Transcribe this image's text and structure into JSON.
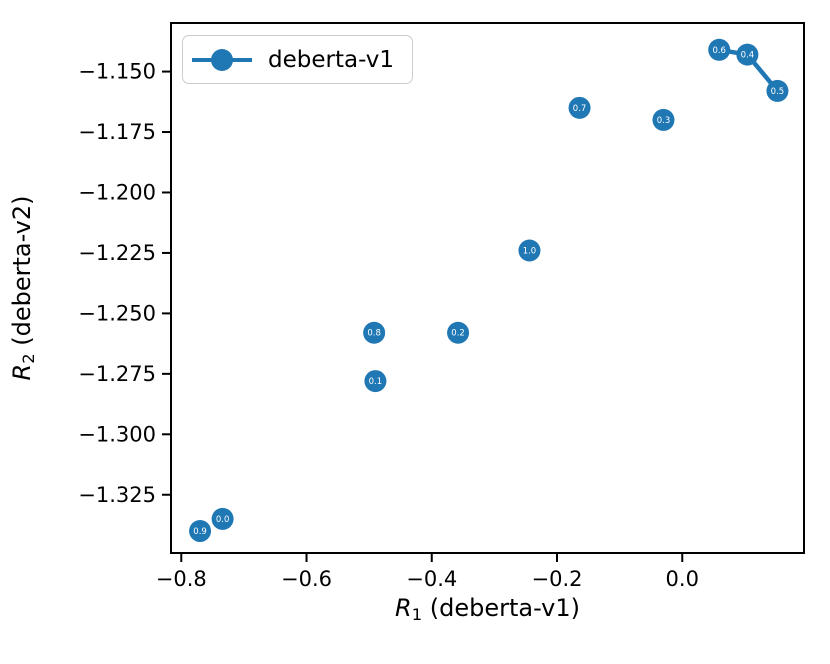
{
  "figure": {
    "background": "#ffffff"
  },
  "chart_data": {
    "type": "scatter",
    "title": "",
    "xlabel": {
      "var": "R",
      "sub": "1",
      "rest": " (deberta-v1)"
    },
    "ylabel": {
      "var": "R",
      "sub": "2",
      "rest": " (deberta-v2)"
    },
    "xlim": [
      -0.818,
      0.196
    ],
    "ylim": [
      -1.3495,
      -1.1295
    ],
    "grid": false,
    "xticks": [
      {
        "value": -0.8,
        "label": "−0.8"
      },
      {
        "value": -0.6,
        "label": "−0.6"
      },
      {
        "value": -0.4,
        "label": "−0.4"
      },
      {
        "value": -0.2,
        "label": "−0.2"
      },
      {
        "value": 0.0,
        "label": "0.0"
      }
    ],
    "yticks": [
      {
        "value": -1.15,
        "label": "−1.150"
      },
      {
        "value": -1.175,
        "label": "−1.175"
      },
      {
        "value": -1.2,
        "label": "−1.200"
      },
      {
        "value": -1.225,
        "label": "−1.225"
      },
      {
        "value": -1.25,
        "label": "−1.250"
      },
      {
        "value": -1.275,
        "label": "−1.275"
      },
      {
        "value": -1.3,
        "label": "−1.300"
      },
      {
        "value": -1.325,
        "label": "−1.325"
      }
    ],
    "legend": {
      "position": "upper left",
      "entries": [
        {
          "label": "deberta-v1",
          "color": "#1f77b4",
          "marker": "circle-line"
        }
      ]
    },
    "series": [
      {
        "name": "deberta-v1",
        "marker_color": "#1f77b4",
        "marker_label_color": "#ffffff",
        "marker_radius_px": 11,
        "points": [
          {
            "label": "0.9",
            "x": -0.77,
            "y": -1.34
          },
          {
            "label": "0.0",
            "x": -0.734,
            "y": -1.335
          },
          {
            "label": "0.8",
            "x": -0.492,
            "y": -1.258
          },
          {
            "label": "0.1",
            "x": -0.49,
            "y": -1.278
          },
          {
            "label": "0.2",
            "x": -0.358,
            "y": -1.258
          },
          {
            "label": "1.0",
            "x": -0.244,
            "y": -1.224
          },
          {
            "label": "0.7",
            "x": -0.164,
            "y": -1.165
          },
          {
            "label": "0.3",
            "x": -0.03,
            "y": -1.17
          },
          {
            "label": "0.6",
            "x": 0.059,
            "y": -1.141
          },
          {
            "label": "0.4",
            "x": 0.104,
            "y": -1.143
          },
          {
            "label": "0.5",
            "x": 0.152,
            "y": -1.158
          }
        ],
        "connected_labels": [
          "0.6",
          "0.4",
          "0.5"
        ]
      }
    ]
  }
}
